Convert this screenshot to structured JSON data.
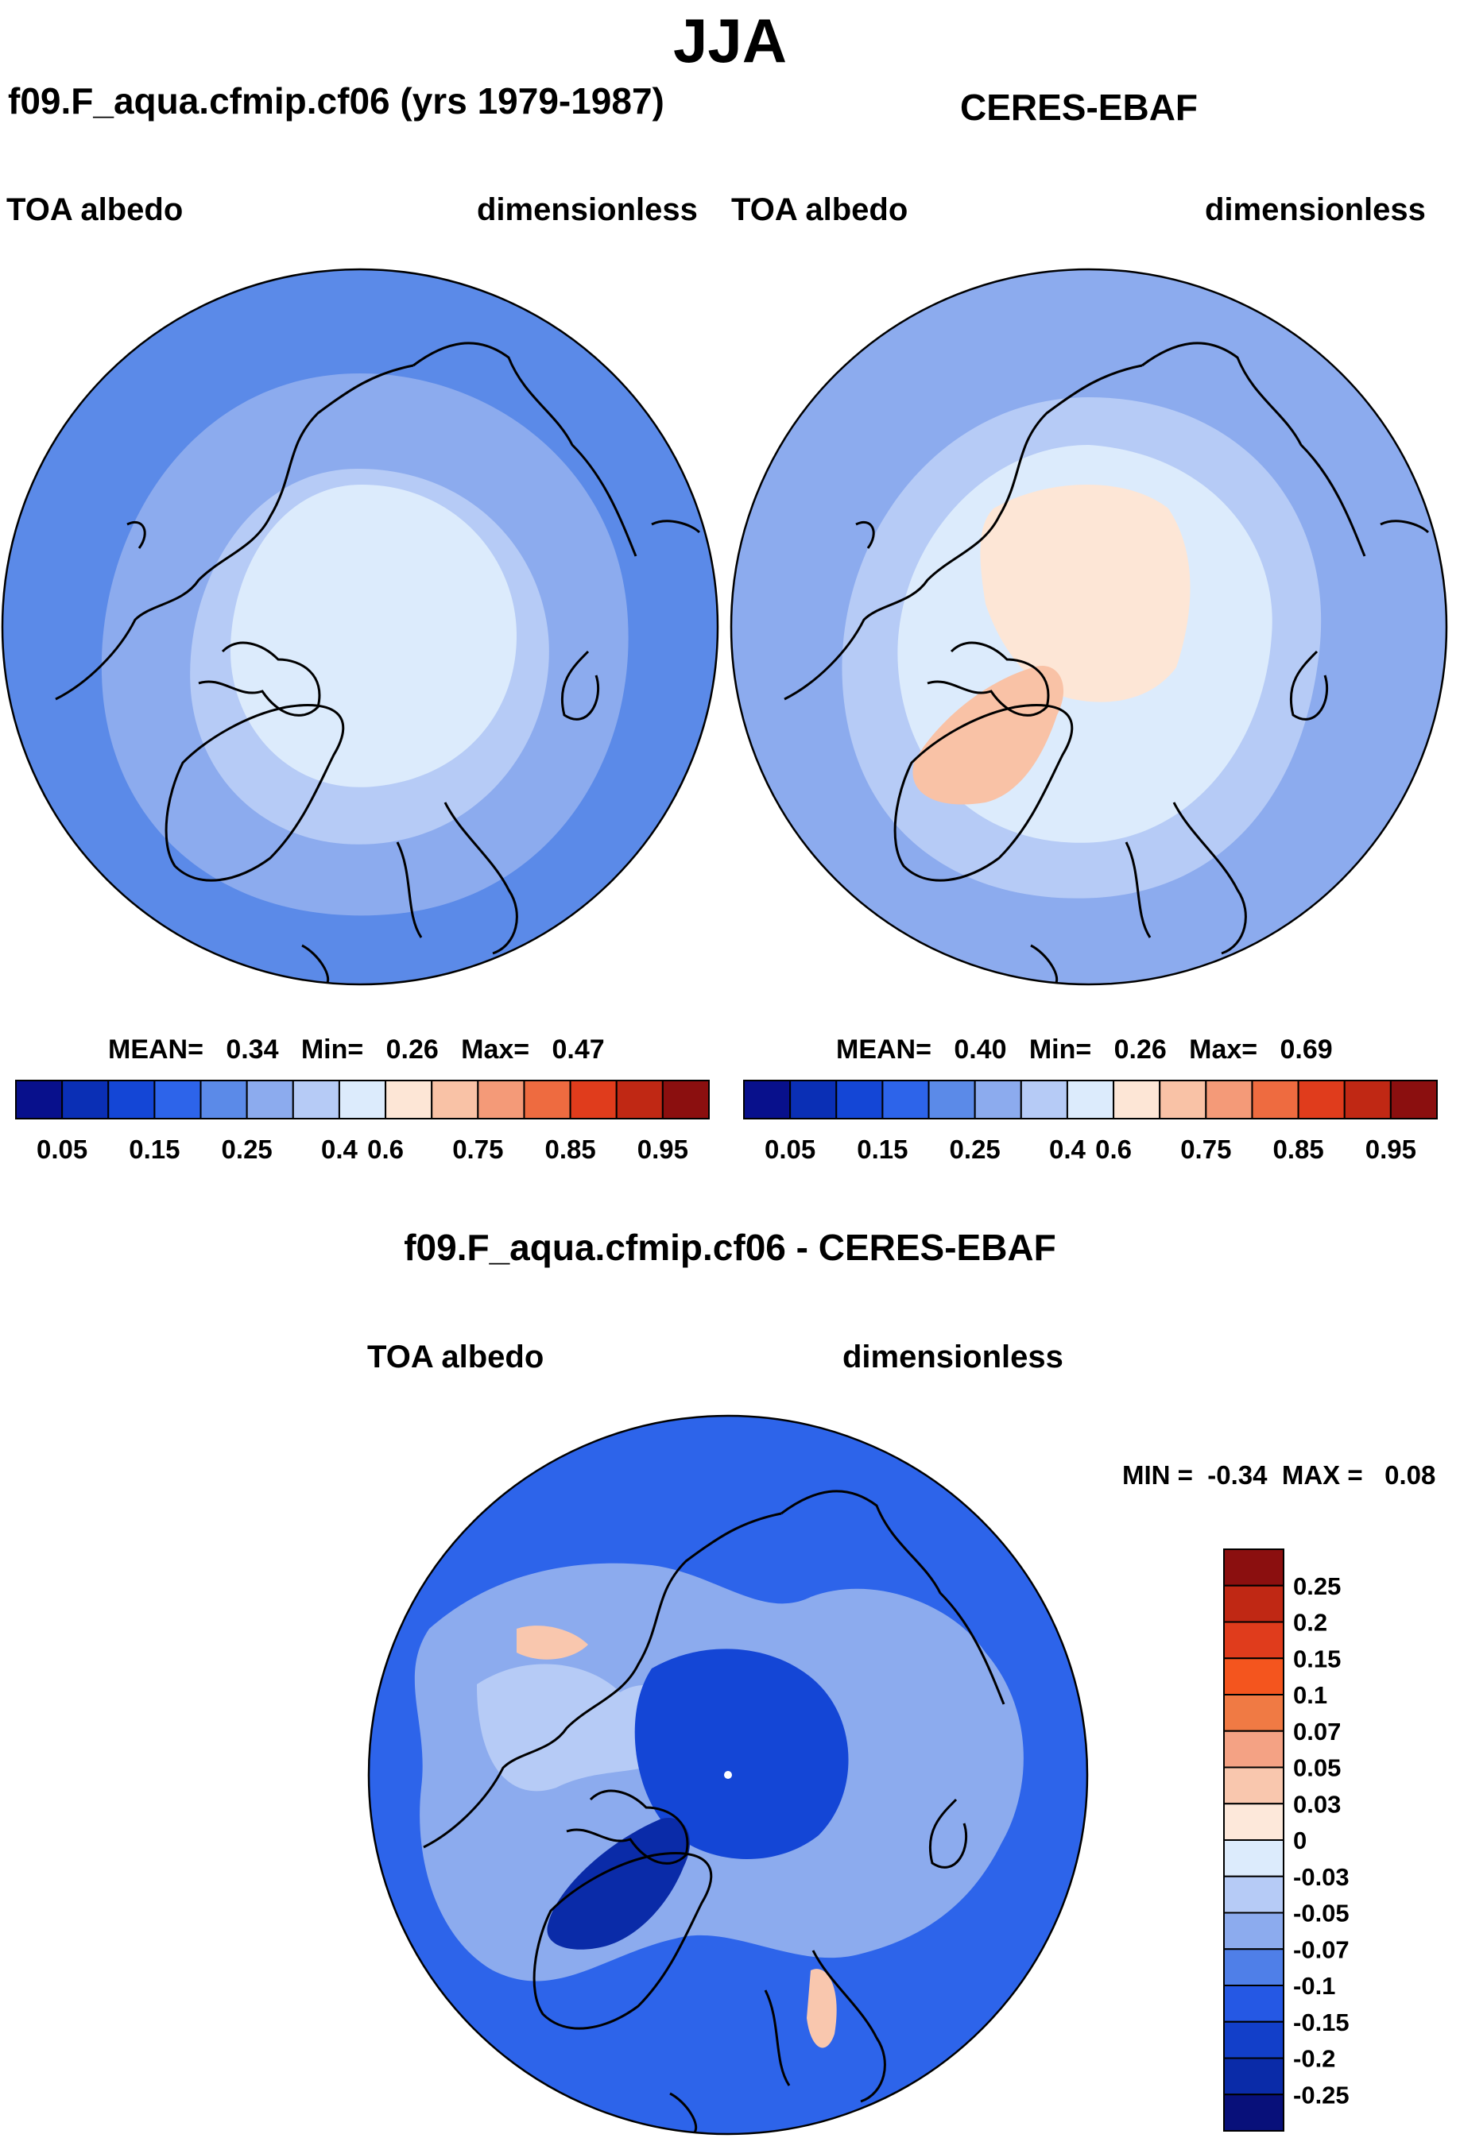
{
  "figure": {
    "title": "JJA"
  },
  "panels": [
    {
      "id": "model",
      "title": "f09.F_aqua.cfmip.cf06 (yrs 1979-1987)",
      "left_label": "TOA albedo",
      "right_label": "dimensionless",
      "stats": {
        "mean_label": "MEAN=",
        "mean": "0.34",
        "min_label": "Min=",
        "min": "0.26",
        "max_label": "Max=",
        "max": "0.47"
      }
    },
    {
      "id": "obs",
      "title": "CERES-EBAF",
      "left_label": "TOA albedo",
      "right_label": "dimensionless",
      "stats": {
        "mean_label": "MEAN=",
        "mean": "0.40",
        "min_label": "Min=",
        "min": "0.26",
        "max_label": "Max=",
        "max": "0.69"
      }
    },
    {
      "id": "diff",
      "title": "f09.F_aqua.cfmip.cf06 - CERES-EBAF",
      "left_label": "TOA albedo",
      "right_label": "dimensionless",
      "stats": {
        "min_label": "MIN =",
        "min": "-0.34",
        "max_label": "MAX =",
        "max": "0.08"
      }
    }
  ],
  "colorbars": {
    "albedo": {
      "labels": [
        "0.05",
        "0.15",
        "0.25",
        "0.4",
        "0.6",
        "0.75",
        "0.85",
        "0.95"
      ],
      "colors": [
        "#08108c",
        "#0a2fb5",
        "#1446d6",
        "#2d64ea",
        "#5b8ae8",
        "#8cabee",
        "#b6cbf6",
        "#dcebfc",
        "#fde6d6",
        "#f9c2a6",
        "#f49a78",
        "#ee6b40",
        "#e03c1c",
        "#c02814",
        "#8b0f0f"
      ]
    },
    "diff": {
      "labels": [
        "0.25",
        "0.2",
        "0.15",
        "0.1",
        "0.07",
        "0.05",
        "0.03",
        "0",
        "-0.03",
        "-0.05",
        "-0.07",
        "-0.1",
        "-0.15",
        "-0.2",
        "-0.25"
      ],
      "colors": [
        "#8b0f0f",
        "#c02814",
        "#e03c1c",
        "#f4551e",
        "#f07a44",
        "#f4a284",
        "#f9c7ae",
        "#fde8da",
        "#dcebfc",
        "#b6cbf6",
        "#8cabee",
        "#4f7fe8",
        "#2558e4",
        "#123fc9",
        "#0a2ba8",
        "#08107a"
      ]
    }
  },
  "map_colors": {
    "model": {
      "outer": "#5b8ae8",
      "mid": "#8cabee",
      "inner": "#b6cbf6",
      "core": "#dcebfc"
    },
    "obs": {
      "outer": "#8cabee",
      "mid": "#b6cbf6",
      "inner": "#dcebfc",
      "core": "#fde6d6",
      "greenland": "#f9c2a6"
    },
    "diff": {
      "base": "#2d64ea",
      "light": "#8cabee",
      "pale": "#b6cbf6",
      "deep": "#1446d6",
      "darkest": "#0a2ba8",
      "warm": "#f9c7ae"
    }
  }
}
